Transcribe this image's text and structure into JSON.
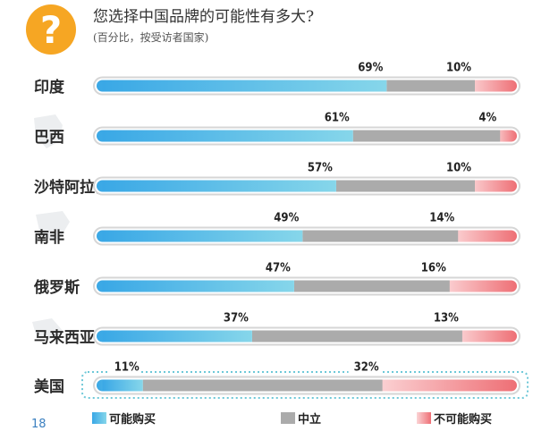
{
  "header": {
    "icon": "question-mark-icon",
    "icon_glyph": "?",
    "question": "您选择中国品牌的可能性有多大?",
    "subtitle": "(百分比，按受访者国家)"
  },
  "page_number": "18",
  "colors": {
    "likely": "#4db8e8",
    "neutral": "#ababab",
    "unlikely": "#f08a8e",
    "icon_bg": "#f6a623",
    "highlight_border": "#6ec8d8"
  },
  "chart_data": {
    "type": "bar",
    "stacked": true,
    "orientation": "horizontal",
    "categories": [
      "印度",
      "巴西",
      "沙特阿拉伯",
      "南非",
      "俄罗斯",
      "马来西亚",
      "美国"
    ],
    "highlighted_category": "美国",
    "series": [
      {
        "name": "可能购买",
        "values": [
          69,
          61,
          57,
          49,
          47,
          37,
          11
        ]
      },
      {
        "name": "中立",
        "values": [
          21,
          35,
          33,
          37,
          37,
          50,
          57
        ]
      },
      {
        "name": "不可能购买",
        "values": [
          10,
          4,
          10,
          14,
          16,
          13,
          32
        ]
      }
    ],
    "data_labels": {
      "likely": [
        "69%",
        "61%",
        "57%",
        "49%",
        "47%",
        "37%",
        "11%"
      ],
      "unlikely": [
        "10%",
        "4%",
        "10%",
        "14%",
        "16%",
        "13%",
        "32%"
      ]
    },
    "xlim": [
      0,
      100
    ],
    "legend_position": "bottom"
  }
}
